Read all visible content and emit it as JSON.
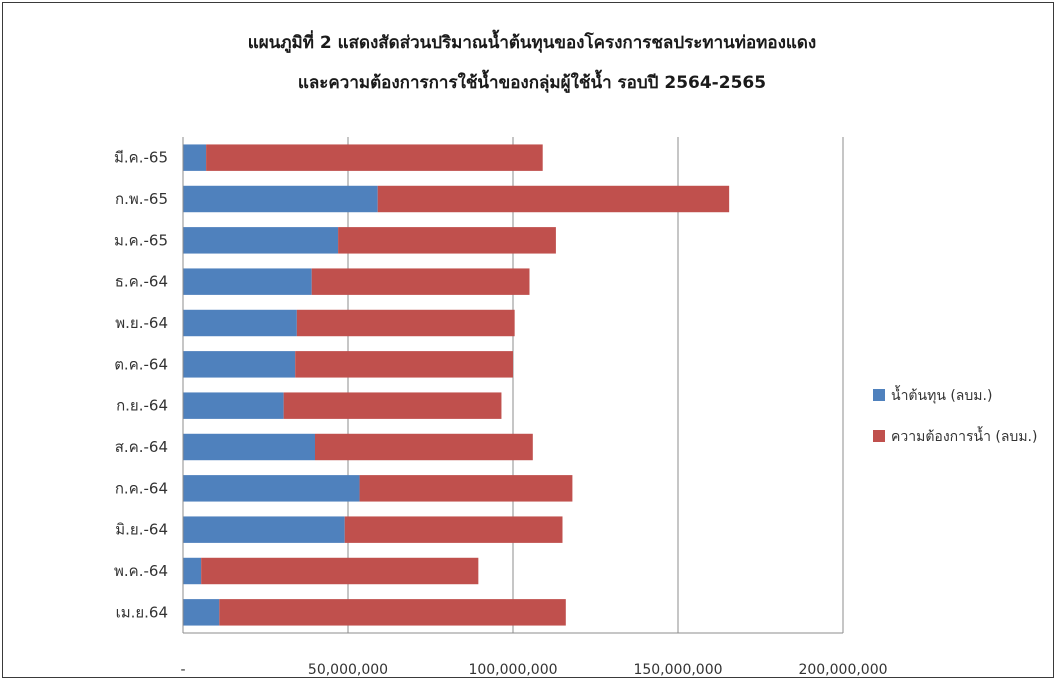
{
  "chart_data": {
    "type": "bar",
    "orientation": "horizontal",
    "stacked": true,
    "title_lines": [
      "แผนภูมิที่  2  แสดงสัดส่วนปริมาณน้ำต้นทุนของโครงการชลประทานท่อทองแดง",
      "และความต้องการการใช้น้ำของกลุ่มผู้ใช้น้ำ   รอบปี  2564-2565"
    ],
    "categories": [
      "มี.ค.-65",
      "ก.พ.-65",
      "ม.ค.-65",
      "ธ.ค.-64",
      "พ.ย.-64",
      "ต.ค.-64",
      "ก.ย.-64",
      "ส.ค.-64",
      "ก.ค.-64",
      "มิ.ย.-64",
      "พ.ค.-64",
      "เม.ย.64"
    ],
    "series": [
      {
        "name": "น้ำต้นทุน (ลบม.)",
        "color": "#4f81bd",
        "values": [
          7000000,
          59000000,
          47000000,
          39000000,
          34500000,
          34000000,
          30500000,
          40000000,
          53500000,
          49000000,
          5500000,
          11000000
        ]
      },
      {
        "name": "ความต้องการน้ำ (ลบม.)",
        "color": "#c0504d",
        "values": [
          102000000,
          106500000,
          66000000,
          66000000,
          66000000,
          66000000,
          66000000,
          66000000,
          64500000,
          66000000,
          84000000,
          105000000
        ]
      }
    ],
    "x_ticks": [
      "-",
      "50,000,000",
      "100,000,000",
      "150,000,000",
      "200,000,000"
    ],
    "xlim": [
      0,
      200000000
    ],
    "grid": "vertical",
    "legend_position": "right"
  }
}
